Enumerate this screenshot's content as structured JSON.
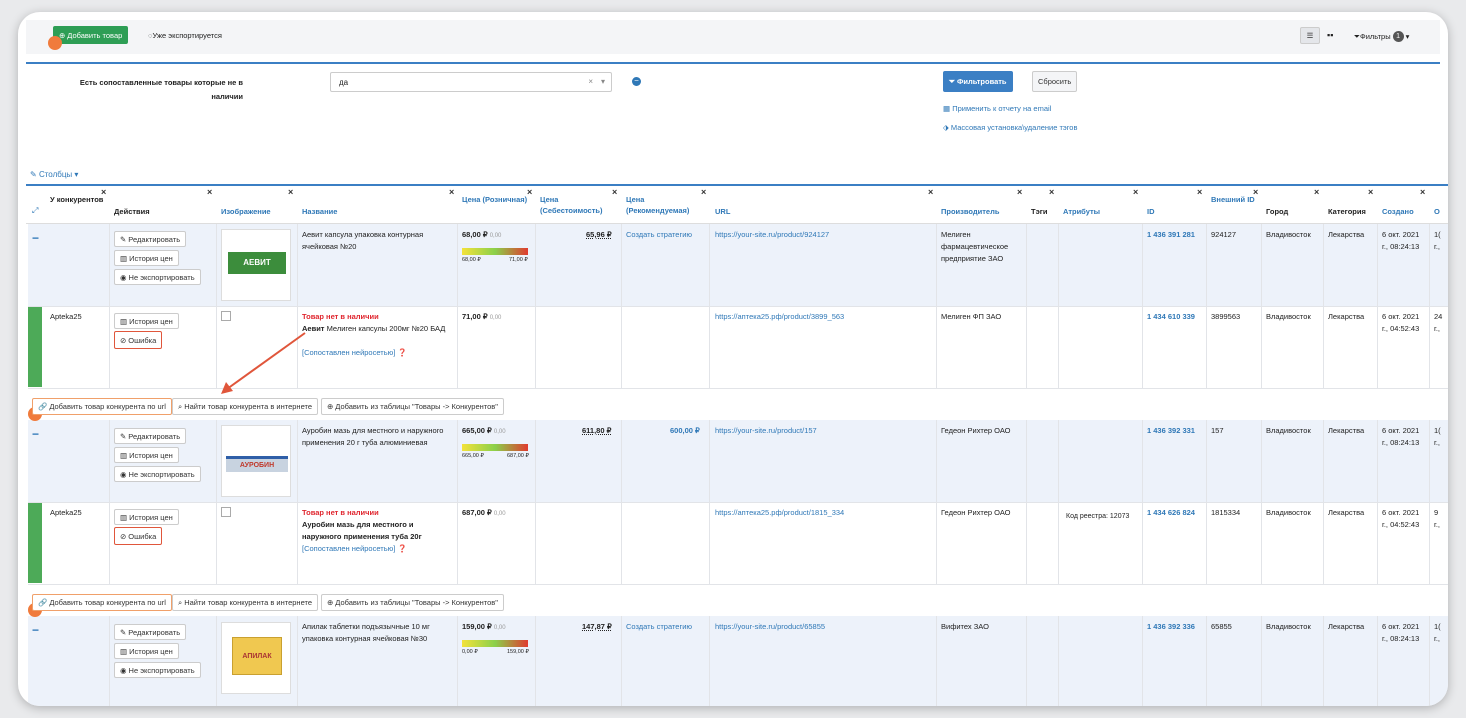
{
  "toolbar": {
    "add_product": "Добавить товар",
    "already_exported": "Уже экспортируется",
    "filters": "Фильтры",
    "filters_count": "1"
  },
  "filter_panel": {
    "label": "Есть сопоставленные товары которые не в наличии",
    "value": "да",
    "filter_button": "Фильтровать",
    "reset_button": "Сбросить",
    "apply_email": "Применить к отчету на email",
    "mass_tags": "Массовая установка\\удаление тэгов"
  },
  "columns_toggle": "Столбцы",
  "headers": {
    "competitors": "У конкурентов",
    "actions": "Действия",
    "image": "Изображение",
    "name": "Название",
    "price_retail": "Цена (Розничная)",
    "price_cost": "Цена (Себестоимость)",
    "price_recommended": "Цена (Рекомендуемая)",
    "url": "URL",
    "manufacturer": "Производитель",
    "tags": "Тэги",
    "attributes": "Атрибуты",
    "id": "ID",
    "external_id": "Внешний ID",
    "city": "Город",
    "category": "Категория",
    "created": "Создано",
    "overflow": "О"
  },
  "actions": {
    "edit": "Редактировать",
    "price_history": "История цен",
    "no_export": "Не экспортировать",
    "error": "Ошибка",
    "add_by_url": "Добавить товар конкурента по url",
    "find_online": "Найти товар конкурента в интернете",
    "add_from_table": "Добавить из таблицы \"Товары -> Конкурентов\""
  },
  "rows": [
    {
      "name": "Аевит капсула упаковка контурная ячейковая №20",
      "price": "68,00 ₽",
      "price_delta": "0,00",
      "bar_min": "68,00 ₽",
      "bar_max": "71,00 ₽",
      "cost": "65,96 ₽",
      "recommended": "Создать стратегию",
      "url": "https://your-site.ru/product/924127",
      "manufacturer": "Мелиген фармацевтическое предприятие ЗАО",
      "id": "1 436 391 281",
      "external_id": "924127",
      "city": "Владивосток",
      "category": "Лекарства",
      "created": "6 окт. 2021 г., 08:24:13",
      "overflow": "1( г.,",
      "image_text": "АЕВИТ"
    },
    {
      "competitor": "Apteka25",
      "out_of_stock": "Товар нет в наличии",
      "name_bold": "Аевит",
      "name": "Мелиген капсулы 200мг №20 БАД",
      "matched": "[Сопоставлен нейросетью]",
      "price": "71,00 ₽",
      "price_delta": "0,00",
      "url": "https://аптека25.рф/product/3899_563",
      "manufacturer": "Мелиген ФП ЗАО",
      "id": "1 434 610 339",
      "external_id": "3899563",
      "city": "Владивосток",
      "category": "Лекарства",
      "created": "6 окт. 2021 г., 04:52:43",
      "overflow": "24 г.,"
    },
    {
      "name": "Ауробин мазь для местного и наружного применения 20 г туба алюминиевая",
      "price": "665,00 ₽",
      "price_delta": "0,00",
      "bar_min": "665,00 ₽",
      "bar_max": "687,00 ₽",
      "cost": "611,80 ₽",
      "recommended": "600,00 ₽",
      "url": "https://your-site.ru/product/157",
      "manufacturer": "Гедеон Рихтер ОАО",
      "id": "1 436 392 331",
      "external_id": "157",
      "city": "Владивосток",
      "category": "Лекарства",
      "created": "6 окт. 2021 г., 08:24:13",
      "overflow": "1( г.,",
      "image_text": "АУРОБИН"
    },
    {
      "competitor": "Apteka25",
      "out_of_stock": "Товар нет в наличии",
      "name": "Ауробин мазь для местного и наружного применения туба 20г",
      "matched": "[Сопоставлен нейросетью]",
      "price": "687,00 ₽",
      "price_delta": "0,00",
      "url": "https://аптека25.рф/product/1815_334",
      "manufacturer": "Гедеон Рихтер ОАО",
      "attribute": "Код реестра: 12073",
      "id": "1 434 626 824",
      "external_id": "1815334",
      "city": "Владивосток",
      "category": "Лекарства",
      "created": "6 окт. 2021 г., 04:52:43",
      "overflow": "9 г.,"
    },
    {
      "name": "Апилак таблетки подъязычные 10 мг упаковка контурная ячейковая №30",
      "price": "159,00 ₽",
      "price_delta": "0,00",
      "bar_min": "0,00 ₽",
      "bar_max": "159,00 ₽",
      "cost": "147,87 ₽",
      "recommended": "Создать стратегию",
      "url": "https://your-site.ru/product/65855",
      "manufacturer": "Вифитех ЗАО",
      "id": "1 436 392 336",
      "external_id": "65855",
      "city": "Владивосток",
      "category": "Лекарства",
      "created": "6 окт. 2021 г., 08:24:13",
      "overflow": "1( г.,",
      "image_text": "АПИЛАК"
    }
  ],
  "colors": {
    "accent": "#2f78b7",
    "green": "#2e9e55",
    "orange": "#f07b3c",
    "row_highlight": "#edf2fa"
  }
}
